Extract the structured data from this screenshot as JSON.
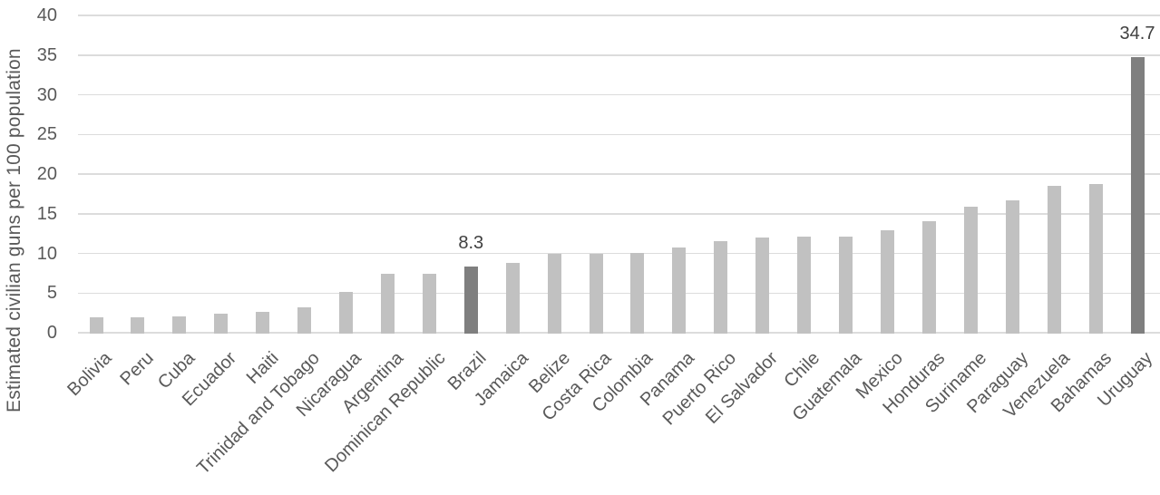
{
  "chart_data": {
    "type": "bar",
    "title": "",
    "ylabel": "Estimated civilian guns per 100 population",
    "xlabel": "",
    "ylim": [
      0,
      40
    ],
    "yticks": [
      0,
      5,
      10,
      15,
      20,
      25,
      30,
      35,
      40
    ],
    "grid": true,
    "legend": false,
    "categories": [
      "Bolivia",
      "Peru",
      "Cuba",
      "Ecuador",
      "Haiti",
      "Trinidad and Tobago",
      "Nicaragua",
      "Argentina",
      "Dominican Republic",
      "Brazil",
      "Jamaica",
      "Belize",
      "Costa Rica",
      "Colombia",
      "Panama",
      "Puerto Rico",
      "El Salvador",
      "Chile",
      "Guatemala",
      "Mexico",
      "Honduras",
      "Suriname",
      "Paraguay",
      "Venezuela",
      "Bahamas",
      "Uruguay"
    ],
    "values": [
      2.0,
      2.0,
      2.1,
      2.4,
      2.6,
      3.2,
      5.2,
      7.4,
      7.4,
      8.3,
      8.8,
      10.0,
      10.0,
      10.1,
      10.8,
      11.5,
      12.0,
      12.1,
      12.1,
      12.9,
      14.1,
      15.9,
      16.7,
      18.5,
      18.8,
      34.7
    ],
    "highlighted_categories": [
      "Brazil",
      "Uruguay"
    ],
    "data_labels": {
      "Brazil": "8.3",
      "Uruguay": "34.7"
    },
    "colors": {
      "bar": "#c1c1c1",
      "bar_highlight": "#7f7f7f",
      "gridline": "#dcdcdc",
      "axis_text": "#595959",
      "data_label_text": "#404040",
      "background": "#ffffff"
    }
  }
}
